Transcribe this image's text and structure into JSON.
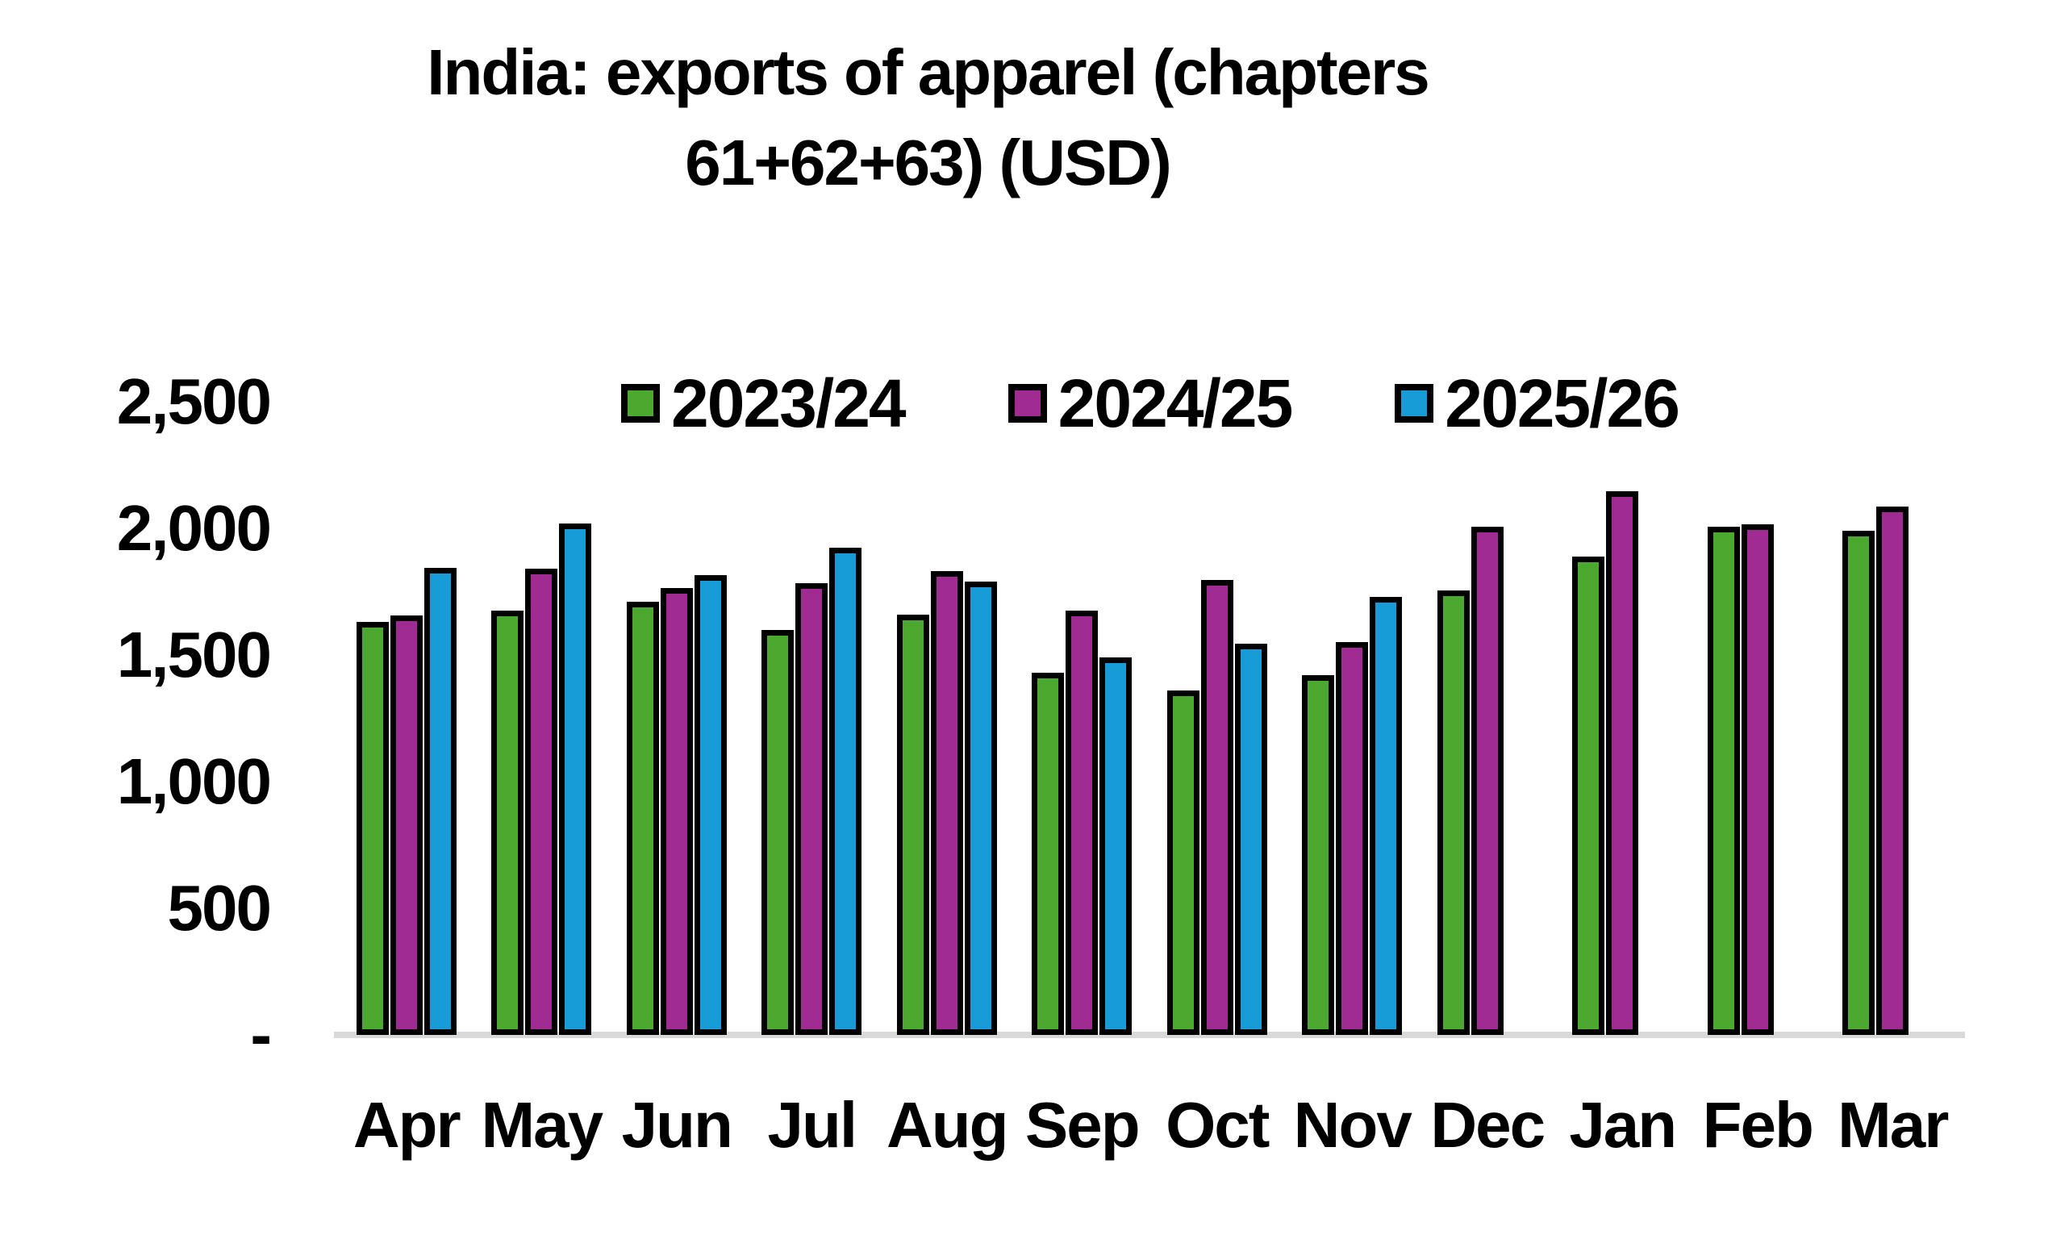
{
  "title": {
    "line1": "India: exports of apparel (chapters",
    "line2": "61+62+63) (USD)"
  },
  "chart_data": {
    "type": "bar",
    "title": "India: exports of apparel (chapters 61+62+63) (USD)",
    "categories": [
      "Apr",
      "May",
      "Jun",
      "Jul",
      "Aug",
      "Sep",
      "Oct",
      "Nov",
      "Dec",
      "Jan",
      "Feb",
      "Mar"
    ],
    "series": [
      {
        "name": "2023/24",
        "color": "#4CA82F",
        "values": [
          1630,
          1675,
          1710,
          1600,
          1660,
          1430,
          1360,
          1420,
          1755,
          1890,
          2005,
          1990
        ]
      },
      {
        "name": "2024/25",
        "color": "#A02B93",
        "values": [
          1655,
          1840,
          1765,
          1785,
          1830,
          1675,
          1795,
          1550,
          2005,
          2145,
          2015,
          2085
        ]
      },
      {
        "name": "2025/26",
        "color": "#189CD8",
        "values": [
          1845,
          2020,
          1815,
          1925,
          1790,
          1490,
          1545,
          1730,
          null,
          null,
          null,
          null
        ]
      }
    ],
    "y_axis": {
      "min": 0,
      "max": 2500,
      "tick_interval": 500,
      "tick_values": [
        2500,
        2000,
        1500,
        1000,
        500,
        0
      ],
      "tick_labels": [
        "2,500",
        "2,000",
        "1,500",
        "1,000",
        "500",
        "-"
      ]
    },
    "legend_position": "top",
    "grid": false,
    "bar_outline_color": "#000000",
    "axis_line_color": "#D9D9D9"
  }
}
